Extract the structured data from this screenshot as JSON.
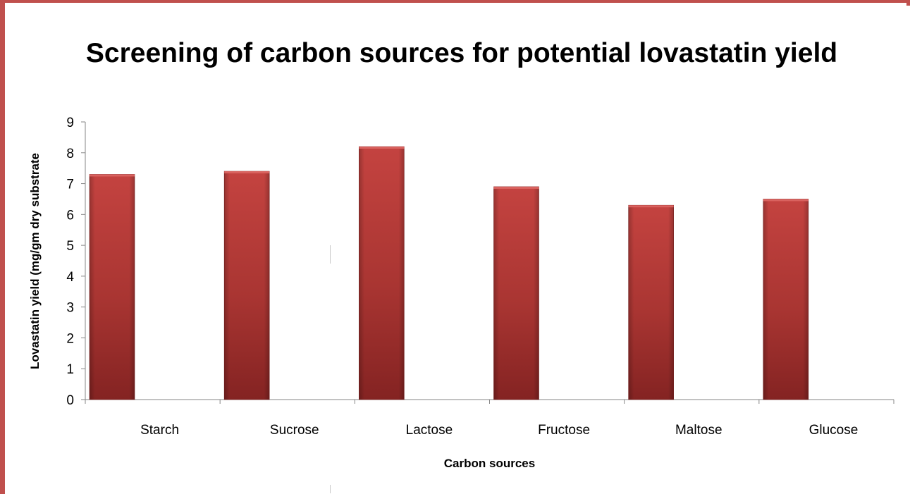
{
  "colors": {
    "frame": "#c0504d",
    "bar_fill": "#c0504d",
    "bar_dark": "#8c2423",
    "axis": "#868686"
  },
  "chart_data": {
    "type": "bar",
    "title": "Screening of carbon sources for potential lovastatin yield",
    "xlabel": "Carbon sources",
    "ylabel": "Lovastatin yield (mg/gm dry substrate",
    "categories": [
      "Starch",
      "Sucrose",
      "Lactose",
      "Fructose",
      "Maltose",
      "Glucose"
    ],
    "values": [
      7.3,
      7.4,
      8.2,
      6.9,
      6.3,
      6.5
    ],
    "ylim": [
      0,
      9
    ],
    "yticks": [
      0,
      1,
      2,
      3,
      4,
      5,
      6,
      7,
      8,
      9
    ],
    "grid": false,
    "legend": "none"
  }
}
